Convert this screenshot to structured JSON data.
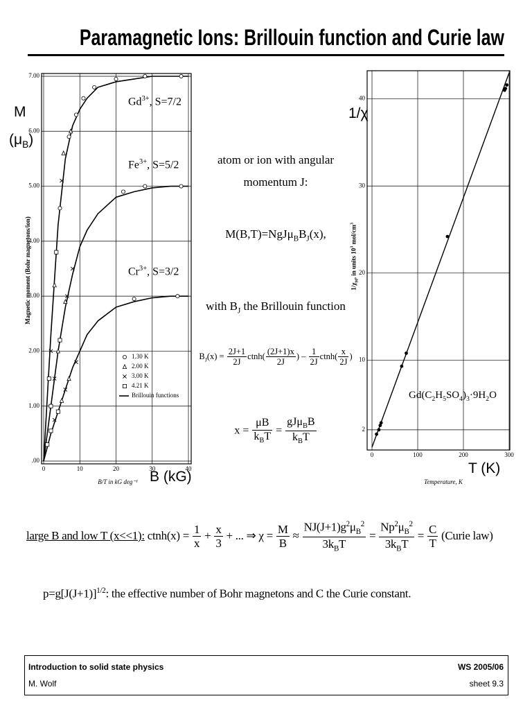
{
  "header": {
    "title": "Paramagnetic Ions: Brillouin function and Curie law"
  },
  "chart_data": [
    {
      "type": "line",
      "y_label": "Magnetic moment (Bohr magnetons/ion)",
      "x_label": "B/T in kG deg⁻¹",
      "y_overlay": [
        [
          "M"
        ],
        [
          "(μ",
          {
            "sub": "B"
          },
          ")"
        ]
      ],
      "x_overlay": [
        "B (kG)"
      ],
      "xlim": [
        0,
        40
      ],
      "xticks": [
        0,
        10,
        20,
        30,
        40
      ],
      "ylim": [
        0,
        7
      ],
      "yticks": [
        {
          "value": 0,
          "label": ".00"
        },
        {
          "value": 1,
          "label": "1.00"
        },
        {
          "value": 2,
          "label": "2.00"
        },
        {
          "value": 3,
          "label": "3.00"
        },
        {
          "value": 4,
          "label": "4.00"
        },
        {
          "value": 5,
          "label": "5.00"
        },
        {
          "value": 6,
          "label": "6.00"
        },
        {
          "value": 7,
          "label": "7.00"
        }
      ],
      "grid": true,
      "curve_color": "#000000",
      "legend": "lower right",
      "legend_curve": "Brillouin functions",
      "x": [
        0,
        2,
        4,
        6,
        8,
        10,
        12,
        15,
        20,
        25,
        30,
        35,
        40
      ],
      "curves": [
        {
          "label": [
            "Gd",
            {
              "sup": "3+"
            },
            ", S=7/2"
          ],
          "values": [
            0,
            2.3,
            4.3,
            5.5,
            6.1,
            6.4,
            6.6,
            6.8,
            6.9,
            6.95,
            7.0,
            7.0,
            7.0
          ]
        },
        {
          "label": [
            "Fe",
            {
              "sup": "3+"
            },
            ", S=5/2"
          ],
          "values": [
            0,
            1.0,
            2.0,
            2.8,
            3.4,
            3.9,
            4.2,
            4.5,
            4.8,
            4.9,
            4.97,
            5.0,
            5.0
          ]
        },
        {
          "label": [
            "Cr",
            {
              "sup": "3+"
            },
            ", S=3/2"
          ],
          "values": [
            0,
            0.5,
            0.9,
            1.3,
            1.7,
            2.0,
            2.3,
            2.55,
            2.8,
            2.9,
            2.97,
            3.0,
            3.0
          ]
        }
      ],
      "series": [
        {
          "name": "1.30 K",
          "marker": "circle",
          "x": [
            4.5,
            7,
            9,
            11,
            14,
            20,
            28,
            38,
            22,
            28,
            38,
            25,
            37
          ],
          "values": [
            4.6,
            5.9,
            6.3,
            6.6,
            6.8,
            6.95,
            7.0,
            7.0,
            4.9,
            5.0,
            5.0,
            2.95,
            3.0
          ]
        },
        {
          "name": "2.00 K",
          "marker": "triangle",
          "x": [
            3,
            5.5,
            7.5,
            4,
            6,
            5,
            7
          ],
          "values": [
            3.2,
            5.6,
            6.0,
            2.0,
            2.9,
            1.1,
            1.5
          ]
        },
        {
          "name": "3.00 K",
          "marker": "cross",
          "x": [
            2,
            5,
            3,
            6.5,
            8,
            3,
            6,
            9
          ],
          "values": [
            2.0,
            5.1,
            1.5,
            3.0,
            3.5,
            0.75,
            1.3,
            1.8
          ]
        },
        {
          "name": "4.21 K",
          "marker": "square",
          "x": [
            1.5,
            3.5,
            2,
            4.5,
            1,
            2,
            4
          ],
          "values": [
            1.5,
            3.8,
            1.0,
            2.2,
            0.3,
            0.55,
            0.9
          ]
        }
      ]
    },
    {
      "type": "scatter",
      "y_label": [
        "1/χ",
        {
          "sub": "M"
        },
        ", in units 10",
        {
          "sup": "3"
        },
        " mol/cm",
        {
          "sup": "3"
        }
      ],
      "x_label": "Temperature, K",
      "y_overlay": [
        [
          "1/χ"
        ]
      ],
      "x_overlay": [
        "T (K)"
      ],
      "annotation": [
        "Gd(C",
        {
          "sub": "2"
        },
        "H",
        {
          "sub": "5"
        },
        "SO",
        {
          "sub": "4"
        },
        ")",
        {
          "sub": "3"
        },
        "·9H",
        {
          "sub": "2"
        },
        "O"
      ],
      "xlim": [
        0,
        300
      ],
      "xticks": [
        0,
        100,
        200,
        300
      ],
      "ylim": [
        0,
        43
      ],
      "yticks": [
        2,
        10,
        20,
        30,
        40
      ],
      "grid": true,
      "x": [
        10,
        15,
        18,
        20,
        65,
        75,
        165,
        290,
        292,
        295
      ],
      "values": [
        1.5,
        2.0,
        2.5,
        2.8,
        9.3,
        10.8,
        24.2,
        41.0,
        41.2,
        41.6
      ],
      "fit": {
        "x": [
          0,
          300
        ],
        "values": [
          0,
          43
        ]
      }
    }
  ],
  "text": {
    "intro": [
      "atom or ion with angular",
      "momentum J:"
    ],
    "magnetization": [
      "M(B,T)=NgJμ",
      {
        "sub": "B"
      },
      "B",
      {
        "sub": "J"
      },
      "(x),"
    ],
    "brillouin_intro": [
      "with B",
      {
        "sub": "J"
      },
      " the Brillouin function"
    ],
    "brillouin": [
      "B",
      {
        "sub": "J"
      },
      "(x) = ",
      {
        "num": [
          "2J+1"
        ],
        "den": [
          "2J"
        ]
      },
      "ctnh(",
      {
        "num": [
          "(2J+1)x"
        ],
        "den": [
          "2J"
        ]
      },
      ") – ",
      {
        "num": [
          "1"
        ],
        "den": [
          "2J"
        ]
      },
      "ctnh(",
      {
        "num": [
          "x"
        ],
        "den": [
          "2J"
        ]
      },
      ")"
    ],
    "x_def": [
      "x = ",
      {
        "num": [
          "μB"
        ],
        "den": [
          "k",
          {
            "sub": "B"
          },
          "T"
        ]
      },
      " = ",
      {
        "num": [
          "gJμ",
          {
            "sub": "B"
          },
          "B"
        ],
        "den": [
          "k",
          {
            "sub": "B"
          },
          "T"
        ]
      }
    ],
    "curie": [
      {
        "u": "large B and low T (x<<1):"
      },
      " ctnh(x) = ",
      {
        "num": [
          "1"
        ],
        "den": [
          "x"
        ]
      },
      " + ",
      {
        "num": [
          "x"
        ],
        "den": [
          "3"
        ]
      },
      " + ... ⇒ χ = ",
      {
        "num": [
          "M"
        ],
        "den": [
          "B"
        ]
      },
      " ≈ ",
      {
        "num": [
          "NJ(J+1)g",
          {
            "sup": "2"
          },
          "μ",
          {
            "sub": "B"
          },
          {
            "sup": "2"
          }
        ],
        "den": [
          "3k",
          {
            "sub": "B"
          },
          "T"
        ]
      },
      " = ",
      {
        "num": [
          "Np",
          {
            "sup": "2"
          },
          "μ",
          {
            "sub": "B"
          },
          {
            "sup": "2"
          }
        ],
        "den": [
          "3k",
          {
            "sub": "B"
          },
          "T"
        ]
      },
      " = ",
      {
        "num": [
          "C"
        ],
        "den": [
          "T"
        ]
      },
      " (Curie law)"
    ],
    "effective": [
      "p=g[J(J+1)]",
      {
        "sup": "1/2"
      },
      ": the effective number of Bohr magnetons and C the Curie constant."
    ]
  },
  "footer": {
    "course": "Introduction to solid state physics",
    "author": "M. Wolf",
    "term": "WS 2005/06",
    "sheet": "sheet 9.3"
  }
}
